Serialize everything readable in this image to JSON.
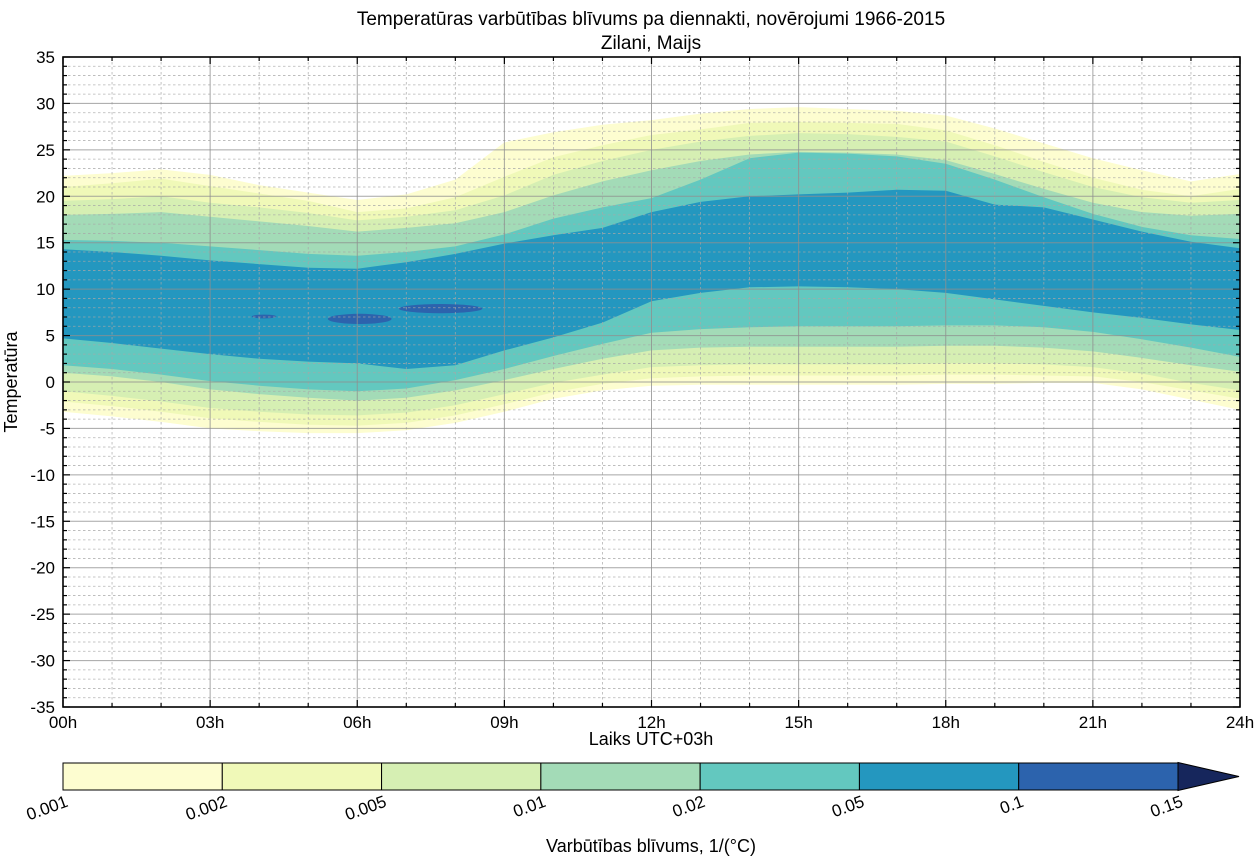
{
  "chart_data": {
    "type": "filled_contour",
    "title": "Temperatūras varbūtības blīvums pa diennakti, novērojumi 1966-2015",
    "subtitle": "Zilani, Maijs",
    "xlabel": "Laiks UTC+03h",
    "ylabel": "Temperatūra",
    "xlim": [
      0,
      24
    ],
    "ylim": [
      -35,
      35
    ],
    "grid": {
      "major_x_step_hours": 3,
      "minor_x_step_hours": 1,
      "major_y_step": 5,
      "minor_y_step": 1,
      "major_color": "#8f8f8f",
      "minor_color": "#a8a8a8"
    },
    "axes": {
      "x_ticks": [
        "00h",
        "03h",
        "06h",
        "09h",
        "12h",
        "15h",
        "18h",
        "21h",
        "24h"
      ],
      "x_tick_hours": [
        0,
        3,
        6,
        9,
        12,
        15,
        18,
        21,
        24
      ],
      "y_ticks": [
        35,
        30,
        25,
        20,
        15,
        10,
        5,
        0,
        -5,
        -10,
        -15,
        -20,
        -25,
        -30,
        -35
      ]
    },
    "levels": [
      0.001,
      0.002,
      0.005,
      0.01,
      0.02,
      0.05,
      0.1,
      0.15
    ],
    "hours": [
      0,
      1,
      2,
      3,
      4,
      5,
      6,
      7,
      8,
      9,
      10,
      11,
      12,
      13,
      14,
      15,
      16,
      17,
      18,
      19,
      20,
      21,
      22,
      23,
      24
    ],
    "bands": [
      {
        "threshold": 0.001,
        "color": "#fdfdd0",
        "upper": [
          22.2,
          22.5,
          22.9,
          22.3,
          21.2,
          20.4,
          19.6,
          20.2,
          21.8,
          25.8,
          26.9,
          27.7,
          28.2,
          28.9,
          29.4,
          29.6,
          29.4,
          29.2,
          28.7,
          27.3,
          25.7,
          24.1,
          22.8,
          21.6,
          22.4
        ],
        "lower": [
          -3.2,
          -3.7,
          -4.3,
          -5.0,
          -5.3,
          -5.5,
          -5.5,
          -5.2,
          -4.4,
          -3.2,
          -1.8,
          -0.9,
          -0.4,
          -0.3,
          -0.3,
          -0.3,
          -0.3,
          -0.3,
          -0.2,
          -0.2,
          -0.1,
          -0.1,
          -0.8,
          -1.9,
          -3.0
        ]
      },
      {
        "threshold": 0.002,
        "color": "#f0f9b8",
        "upper": [
          21.0,
          21.4,
          21.9,
          21.1,
          20.3,
          19.5,
          18.3,
          18.7,
          19.9,
          22.1,
          24.2,
          25.5,
          26.6,
          27.2,
          27.9,
          28.0,
          27.9,
          27.8,
          27.1,
          25.5,
          23.7,
          22.0,
          20.7,
          20.0,
          20.8
        ],
        "lower": [
          -2.1,
          -2.6,
          -3.2,
          -3.9,
          -4.3,
          -4.6,
          -4.7,
          -4.4,
          -3.6,
          -2.4,
          -1.1,
          -0.2,
          0.4,
          0.6,
          0.7,
          0.7,
          0.7,
          0.7,
          0.8,
          0.8,
          0.7,
          0.6,
          0.0,
          -0.9,
          -1.8
        ]
      },
      {
        "threshold": 0.005,
        "color": "#d6efb3",
        "upper": [
          19.5,
          19.7,
          20.0,
          19.3,
          18.8,
          18.2,
          17.4,
          17.8,
          18.5,
          20.1,
          22.3,
          23.8,
          25.0,
          25.9,
          26.5,
          26.8,
          26.7,
          26.4,
          25.9,
          24.3,
          22.6,
          21.0,
          19.9,
          19.3,
          19.6
        ],
        "lower": [
          -1.0,
          -1.5,
          -2.1,
          -2.8,
          -3.2,
          -3.5,
          -3.6,
          -3.3,
          -2.5,
          -1.3,
          -0.1,
          0.8,
          1.6,
          1.8,
          1.9,
          1.9,
          1.9,
          1.9,
          2.0,
          2.0,
          1.9,
          1.6,
          0.9,
          -0.1,
          -0.9
        ]
      },
      {
        "threshold": 0.01,
        "color": "#a3dbb7",
        "upper": [
          18.0,
          18.1,
          18.3,
          17.8,
          17.3,
          16.8,
          16.2,
          16.6,
          17.1,
          18.3,
          20.1,
          21.6,
          22.8,
          23.8,
          24.5,
          24.8,
          24.7,
          24.5,
          23.9,
          22.4,
          20.8,
          19.3,
          18.3,
          17.9,
          18.1
        ],
        "lower": [
          1.0,
          0.6,
          0.0,
          -0.8,
          -1.3,
          -1.7,
          -2.0,
          -1.7,
          -0.9,
          0.2,
          1.4,
          2.5,
          3.4,
          3.7,
          3.8,
          3.8,
          3.8,
          3.8,
          3.9,
          3.9,
          3.7,
          3.3,
          2.6,
          1.8,
          1.1
        ]
      },
      {
        "threshold": 0.02,
        "color": "#63c8bf",
        "upper": [
          15.3,
          15.2,
          15.0,
          14.6,
          14.2,
          13.8,
          13.6,
          14.0,
          14.6,
          15.9,
          17.6,
          18.8,
          19.8,
          21.8,
          24.1,
          24.7,
          24.6,
          24.3,
          23.5,
          21.8,
          19.9,
          18.1,
          16.7,
          15.8,
          15.4
        ],
        "lower": [
          1.8,
          1.4,
          0.8,
          0.1,
          -0.4,
          -0.8,
          -1.0,
          -0.7,
          0.2,
          1.4,
          2.8,
          4.1,
          5.3,
          5.7,
          5.9,
          6.0,
          6.0,
          6.0,
          6.1,
          6.1,
          5.9,
          5.4,
          4.6,
          3.7,
          2.7
        ]
      },
      {
        "threshold": 0.05,
        "color": "#2497bf",
        "upper": [
          14.3,
          14.0,
          13.6,
          13.1,
          12.7,
          12.3,
          12.2,
          12.9,
          13.8,
          14.9,
          15.8,
          16.6,
          18.3,
          19.4,
          20.0,
          20.2,
          20.4,
          20.7,
          20.6,
          19.1,
          18.8,
          17.5,
          16.2,
          15.1,
          14.4
        ],
        "lower": [
          4.7,
          4.2,
          3.6,
          3.0,
          2.5,
          2.2,
          2.0,
          1.4,
          1.8,
          3.4,
          4.8,
          6.4,
          8.7,
          9.6,
          10.2,
          10.3,
          10.2,
          10.0,
          9.6,
          8.9,
          8.2,
          7.5,
          6.9,
          6.2,
          5.6
        ]
      }
    ],
    "high_density_blobs": [
      {
        "threshold": 0.1,
        "color": "#2c63ad",
        "hour_center": 4.1,
        "temp_center": 7.05,
        "hour_radius": 0.25,
        "temp_radius": 0.2
      },
      {
        "threshold": 0.1,
        "color": "#2c63ad",
        "hour_center": 6.05,
        "temp_center": 6.8,
        "hour_radius": 0.65,
        "temp_radius": 0.55
      },
      {
        "threshold": 0.1,
        "color": "#2c63ad",
        "hour_center": 7.7,
        "temp_center": 7.9,
        "hour_radius": 0.85,
        "temp_radius": 0.5
      }
    ],
    "colorbar": {
      "label": "Varbūtības blīvums, 1/(°C)",
      "tick_labels": [
        "0.001",
        "0.002",
        "0.005",
        "0.01",
        "0.02",
        "0.05",
        "0.1",
        "0.15"
      ],
      "segment_colors": [
        "#fdfdd0",
        "#f0f9b8",
        "#d6efb3",
        "#a3dbb7",
        "#63c8bf",
        "#2497bf",
        "#2c63ad"
      ],
      "arrow_color": "#16265c"
    }
  }
}
